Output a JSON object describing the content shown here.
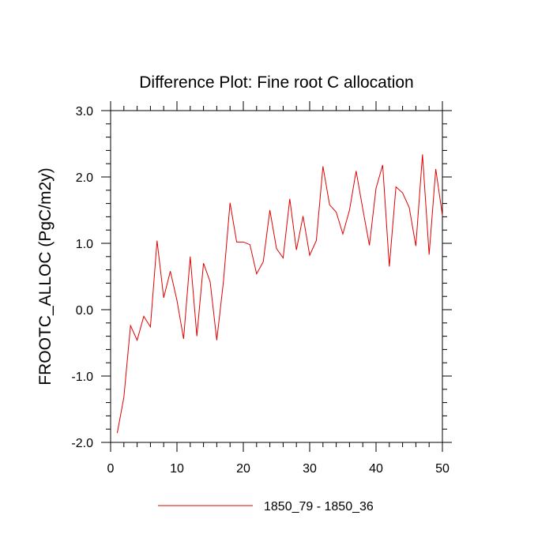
{
  "chart_data": {
    "type": "line",
    "title": "Difference Plot: Fine root C allocation",
    "ylabel": "FROOTC_ALLOC  (PgC/m2y)",
    "xlabel": "",
    "xlim": [
      0,
      50
    ],
    "ylim": [
      -2.0,
      3.0
    ],
    "x_ticks": [
      {
        "value": 0,
        "label": "0"
      },
      {
        "value": 10,
        "label": "10"
      },
      {
        "value": 20,
        "label": "20"
      },
      {
        "value": 30,
        "label": "30"
      },
      {
        "value": 40,
        "label": "40"
      },
      {
        "value": 50,
        "label": "50"
      }
    ],
    "y_ticks": [
      {
        "value": -2.0,
        "label": "-2.0"
      },
      {
        "value": -1.0,
        "label": "-1.0"
      },
      {
        "value": 0.0,
        "label": "0.0"
      },
      {
        "value": 1.0,
        "label": "1.0"
      },
      {
        "value": 2.0,
        "label": "2.0"
      },
      {
        "value": 3.0,
        "label": "3.0"
      }
    ],
    "grid": false,
    "legend_position": "bottom",
    "series": [
      {
        "name": "1850_79 - 1850_36",
        "color": "#e00000",
        "x": [
          1,
          2,
          3,
          4,
          5,
          6,
          7,
          8,
          9,
          10,
          11,
          12,
          13,
          14,
          15,
          16,
          17,
          18,
          19,
          20,
          21,
          22,
          23,
          24,
          25,
          26,
          27,
          28,
          29,
          30,
          31,
          32,
          33,
          34,
          35,
          36,
          37,
          38,
          39,
          40,
          41,
          42,
          43,
          44,
          45,
          46,
          47,
          48,
          49,
          50
        ],
        "y": [
          -1.86,
          -1.32,
          -0.24,
          -0.46,
          -0.1,
          -0.26,
          1.04,
          0.18,
          0.58,
          0.14,
          -0.44,
          0.8,
          -0.4,
          0.7,
          0.42,
          -0.46,
          0.42,
          1.61,
          1.02,
          1.02,
          0.98,
          0.54,
          0.72,
          1.5,
          0.92,
          0.78,
          1.67,
          0.9,
          1.41,
          0.82,
          1.04,
          2.16,
          1.58,
          1.47,
          1.14,
          1.5,
          2.09,
          1.52,
          0.97,
          1.83,
          2.18,
          0.65,
          1.85,
          1.76,
          1.54,
          0.96,
          2.34,
          0.83,
          2.12,
          1.42
        ]
      }
    ]
  }
}
